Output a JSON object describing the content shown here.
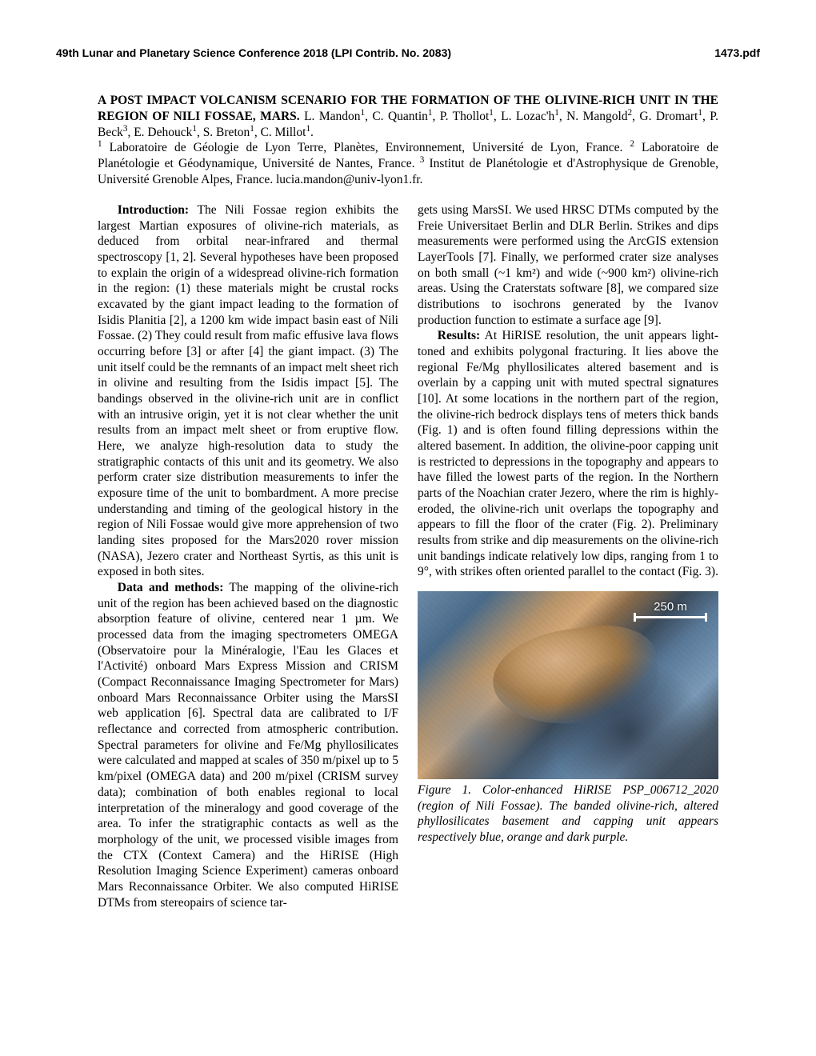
{
  "header": {
    "left": "49th Lunar and Planetary Science Conference 2018 (LPI Contrib. No. 2083)",
    "right": "1473.pdf"
  },
  "title": {
    "bold": "A POST IMPACT VOLCANISM SCENARIO FOR THE FORMATION OF THE OLIVINE-RICH UNIT IN THE REGION OF NILI FOSSAE, MARS.",
    "authors_html": " L. Mandon<sup>1</sup>, C. Quantin<sup>1</sup>, P. Thollot<sup>1</sup>, L. Lozac'h<sup>1</sup>, N. Mangold<sup>2</sup>, G. Dromart<sup>1</sup>, P. Beck<sup>3</sup>, E. Dehouck<sup>1</sup>, S. Breton<sup>1</sup>, C. Millot<sup>1</sup>.",
    "affil_html": "<sup>1</sup> Laboratoire de Géologie de Lyon Terre, Planètes, Environnement, Université de Lyon, France. <sup>2</sup> Laboratoire de Planétologie et Géodynamique, Université de Nantes, France. <sup>3</sup> Institut de Planétologie et d'Astrophysique de Grenoble, Université Grenoble Alpes, France. lucia.mandon@univ-lyon1.fr."
  },
  "left_col": {
    "p1_lead": "Introduction:",
    "p1": "  The Nili Fossae region exhibits the largest Martian exposures of olivine-rich materials, as deduced from orbital near-infrared and thermal spectroscopy [1, 2]. Several hypotheses have been proposed to explain the origin of a widespread olivine-rich formation in the region: (1) these materials might be crustal rocks excavated by the giant impact leading to the formation of Isidis Planitia [2], a 1200 km wide impact basin east of Nili Fossae. (2) They could result from mafic effusive lava flows occurring before [3] or after [4] the giant impact. (3) The unit itself could be the remnants of an impact melt sheet rich in olivine and resulting from the Isidis impact [5]. The bandings observed in the olivine-rich unit are in conflict with an intrusive origin, yet it is not clear whether the unit results from an impact melt sheet or from eruptive flow. Here, we analyze high-resolution data to study the stratigraphic contacts of this unit and its geometry. We also perform crater size distribution measurements to infer the exposure time of the unit to bombardment. A more precise understanding and timing of the geological history in the region of Nili Fossae would give more apprehension of two landing sites proposed for the Mars2020 rover mission (NASA), Jezero crater and Northeast Syrtis, as this unit is exposed in both sites.",
    "p2_lead": "Data and methods:",
    "p2": " The mapping of the olivine-rich unit of the region has been achieved based on the diagnostic absorption feature of olivine, centered near 1 µm. We processed data from the imaging spectrometers OMEGA (Observatoire pour la Minéralogie, l'Eau les Glaces et l'Activité) onboard Mars Express Mission and CRISM (Compact Reconnaissance Imaging Spectrometer for Mars) onboard Mars Reconnaissance Orbiter using the MarsSI web application [6]. Spectral data are calibrated to I/F reflectance and corrected from atmospheric contribution. Spectral parameters for olivine and Fe/Mg phyllosilicates were calculated and mapped at scales of 350 m/pixel up to 5 km/pixel (OMEGA data) and 200 m/pixel (CRISM survey data); combination of both enables regional to local interpretation of the mineralogy and good coverage of the area. To infer the stratigraphic contacts as well as the morphology of the unit, we processed visible images from the CTX (Context Camera) and the HiRISE (High Resolution Imaging Science Experiment) cameras onboard Mars Reconnaissance Orbiter. We also computed HiRISE DTMs from stereopairs of science tar-"
  },
  "right_col": {
    "p1": "gets using MarsSI. We used HRSC DTMs computed by the Freie Universitaet Berlin and DLR Berlin. Strikes and dips measurements were performed using the ArcGIS extension LayerTools [7]. Finally, we performed crater size analyses on both small (~1 km²) and wide (~900 km²) olivine-rich areas. Using the Craterstats software [8], we compared size distributions to isochrons generated by the Ivanov production function to estimate a surface age [9].",
    "p2_lead": "Results:",
    "p2": " At HiRISE resolution, the unit appears light-toned and exhibits polygonal fracturing. It lies above the regional Fe/Mg phyllosilicates altered basement and is overlain by a capping unit with muted spectral signatures [10]. At some locations in the northern part of the region, the olivine-rich bedrock displays tens of meters thick bands (Fig. 1) and is often found filling depressions within the altered basement. In addition, the olivine-poor capping unit is restricted to depressions in the topography and appears to have filled the lowest parts of the region. In the Northern parts of the Noachian crater Jezero, where the rim is highly-eroded, the olivine-rich unit overlaps the topography and appears to fill the floor of the crater (Fig. 2). Preliminary results from strike and dip measurements on the olivine-rich unit bandings indicate relatively low dips, ranging from 1 to 9°, with strikes often oriented parallel to the contact (Fig. 3)."
  },
  "figure": {
    "scalebar_label": "250 m",
    "caption": "Figure 1. Color-enhanced HiRISE PSP_006712_2020 (region of Nili Fossae). The banded olivine-rich, altered phyllosilicates basement and capping unit appears respectively blue, orange and dark purple.",
    "colors": {
      "blue": "#5a7a9a",
      "orange": "#d4a878",
      "dark_purple": "#3a4452"
    }
  }
}
